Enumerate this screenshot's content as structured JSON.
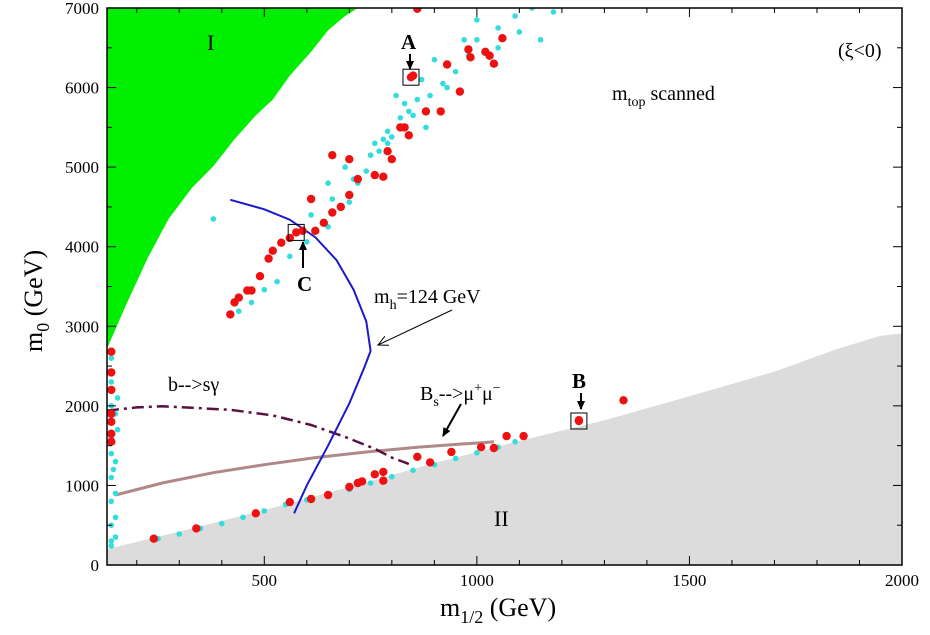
{
  "chart_data": {
    "type": "scatter",
    "title": "",
    "xlabel": {
      "main": "m",
      "sub": "1/2",
      "unit": " (GeV)"
    },
    "ylabel": {
      "main": "m",
      "sub": "0",
      "unit": " (GeV)"
    },
    "xlim": [
      130,
      2000
    ],
    "ylim": [
      0,
      7000
    ],
    "x_ticks": [
      500,
      1000,
      1500,
      2000
    ],
    "y_ticks": [
      0,
      1000,
      2000,
      3000,
      4000,
      5000,
      6000,
      7000
    ],
    "grid": false,
    "annotations": {
      "xi": "(ξ<0)",
      "mtop": {
        "main": "m",
        "sub": "top",
        "rest": " scanned"
      },
      "region_I": "I",
      "region_II": "II",
      "mh": {
        "main": "m",
        "sub": "h",
        "rest": "=124 GeV"
      },
      "bsg": "b-->sγ",
      "bsmumu": {
        "main": "B",
        "sub": "s",
        "rest": "-->μ",
        "sup1": "+",
        "mid": "μ",
        "sup2": "−"
      },
      "point_A": "A",
      "point_B": "B",
      "point_C": "C"
    },
    "colors": {
      "region_I": "#00ee00",
      "region_II": "#dcdcdc",
      "cyan": "#33dddd",
      "red": "#ee1111",
      "mh_curve": "#1a1acc",
      "bsg_curve": "#5a1040",
      "bsmumu_curve": "#b08888"
    },
    "regions": {
      "I": [
        [
          130,
          2720
        ],
        [
          175,
          3270
        ],
        [
          225,
          3850
        ],
        [
          275,
          4350
        ],
        [
          330,
          4740
        ],
        [
          380,
          5010
        ],
        [
          430,
          5350
        ],
        [
          480,
          5650
        ],
        [
          520,
          5850
        ],
        [
          560,
          6150
        ],
        [
          610,
          6450
        ],
        [
          650,
          6720
        ],
        [
          690,
          6900
        ],
        [
          720,
          7000
        ],
        [
          130,
          7000
        ]
      ],
      "II": [
        [
          130,
          0
        ],
        [
          130,
          200
        ],
        [
          300,
          420
        ],
        [
          500,
          690
        ],
        [
          700,
          980
        ],
        [
          900,
          1280
        ],
        [
          1100,
          1560
        ],
        [
          1300,
          1820
        ],
        [
          1500,
          2120
        ],
        [
          1700,
          2430
        ],
        [
          1850,
          2720
        ],
        [
          1950,
          2880
        ],
        [
          2000,
          2910
        ],
        [
          2000,
          0
        ]
      ]
    },
    "curves": {
      "mh": [
        [
          420,
          4590
        ],
        [
          500,
          4470
        ],
        [
          560,
          4340
        ],
        [
          620,
          4120
        ],
        [
          670,
          3830
        ],
        [
          710,
          3460
        ],
        [
          740,
          3060
        ],
        [
          750,
          2690
        ],
        [
          735,
          2480
        ],
        [
          700,
          2030
        ],
        [
          650,
          1500
        ],
        [
          600,
          1000
        ],
        [
          570,
          650
        ]
      ],
      "bsg": [
        [
          130,
          1940
        ],
        [
          200,
          1980
        ],
        [
          260,
          1995
        ],
        [
          330,
          1975
        ],
        [
          420,
          1950
        ],
        [
          520,
          1880
        ],
        [
          610,
          1760
        ],
        [
          690,
          1610
        ],
        [
          760,
          1460
        ],
        [
          800,
          1350
        ],
        [
          840,
          1270
        ]
      ],
      "bsmumu": [
        [
          150,
          880
        ],
        [
          260,
          1030
        ],
        [
          380,
          1160
        ],
        [
          500,
          1260
        ],
        [
          620,
          1350
        ],
        [
          740,
          1420
        ],
        [
          860,
          1480
        ],
        [
          960,
          1520
        ],
        [
          1020,
          1540
        ],
        [
          1040,
          1550
        ]
      ]
    },
    "series": [
      {
        "color": "cyan",
        "points": [
          [
            380,
            4350
          ],
          [
            440,
            3190
          ],
          [
            470,
            3300
          ],
          [
            500,
            3460
          ],
          [
            530,
            3560
          ],
          [
            560,
            3880
          ],
          [
            600,
            4060
          ],
          [
            620,
            4200
          ],
          [
            650,
            4250
          ],
          [
            680,
            4480
          ],
          [
            700,
            4560
          ],
          [
            710,
            4850
          ],
          [
            740,
            4950
          ],
          [
            770,
            5200
          ],
          [
            800,
            5380
          ],
          [
            820,
            5620
          ],
          [
            840,
            5700
          ],
          [
            860,
            5850
          ],
          [
            890,
            5900
          ],
          [
            920,
            6050
          ],
          [
            950,
            6200
          ],
          [
            980,
            6400
          ],
          [
            1000,
            6600
          ],
          [
            1050,
            6750
          ],
          [
            1090,
            6900
          ],
          [
            1130,
            7000
          ],
          [
            1180,
            6950
          ],
          [
            650,
            4800
          ],
          [
            690,
            5000
          ],
          [
            750,
            5150
          ],
          [
            790,
            5450
          ],
          [
            830,
            5800
          ],
          [
            870,
            6100
          ],
          [
            900,
            6350
          ],
          [
            1000,
            6850
          ],
          [
            1100,
            6700
          ],
          [
            610,
            4400
          ],
          [
            660,
            4600
          ],
          [
            720,
            4800
          ],
          [
            780,
            5350
          ],
          [
            850,
            5650
          ],
          [
            930,
            6000
          ],
          [
            1050,
            6500
          ],
          [
            1150,
            6600
          ],
          [
            790,
            5300
          ],
          [
            880,
            5500
          ],
          [
            760,
            5300
          ],
          [
            810,
            5900
          ],
          [
            970,
            6600
          ],
          [
            250,
            330
          ],
          [
            300,
            390
          ],
          [
            350,
            460
          ],
          [
            400,
            520
          ],
          [
            450,
            600
          ],
          [
            500,
            680
          ],
          [
            550,
            760
          ],
          [
            600,
            820
          ],
          [
            650,
            880
          ],
          [
            700,
            950
          ],
          [
            750,
            1030
          ],
          [
            800,
            1110
          ],
          [
            850,
            1190
          ],
          [
            900,
            1260
          ],
          [
            950,
            1340
          ],
          [
            1000,
            1410
          ],
          [
            1050,
            1480
          ],
          [
            1090,
            1550
          ],
          [
            140,
            240
          ],
          [
            140,
            500
          ],
          [
            140,
            800
          ],
          [
            140,
            1100
          ],
          [
            140,
            1400
          ],
          [
            140,
            1600
          ],
          [
            140,
            1800
          ],
          [
            140,
            2000
          ],
          [
            140,
            2200
          ],
          [
            140,
            2400
          ],
          [
            140,
            2600
          ],
          [
            155,
            2100
          ],
          [
            155,
            1700
          ],
          [
            150,
            1900
          ],
          [
            150,
            1300
          ],
          [
            150,
            900
          ],
          [
            150,
            600
          ],
          [
            150,
            350
          ],
          [
            140,
            300
          ],
          [
            145,
            1200
          ],
          [
            140,
            2300
          ]
        ]
      },
      {
        "color": "red",
        "points": [
          [
            850,
            6150
          ],
          [
            860,
            6990
          ],
          [
            930,
            6290
          ],
          [
            985,
            6380
          ],
          [
            1020,
            6450
          ],
          [
            1030,
            6400
          ],
          [
            1060,
            6620
          ],
          [
            1040,
            6300
          ],
          [
            980,
            6480
          ],
          [
            960,
            5950
          ],
          [
            915,
            5700
          ],
          [
            880,
            5700
          ],
          [
            840,
            5400
          ],
          [
            830,
            5500
          ],
          [
            820,
            5500
          ],
          [
            790,
            5200
          ],
          [
            800,
            5100
          ],
          [
            780,
            4880
          ],
          [
            760,
            4900
          ],
          [
            720,
            4850
          ],
          [
            700,
            4650
          ],
          [
            680,
            4500
          ],
          [
            660,
            4430
          ],
          [
            640,
            4300
          ],
          [
            620,
            4200
          ],
          [
            590,
            4200
          ],
          [
            560,
            4110
          ],
          [
            540,
            4050
          ],
          [
            520,
            3950
          ],
          [
            510,
            3850
          ],
          [
            490,
            3630
          ],
          [
            470,
            3450
          ],
          [
            460,
            3450
          ],
          [
            440,
            3360
          ],
          [
            430,
            3300
          ],
          [
            420,
            3150
          ],
          [
            660,
            5150
          ],
          [
            700,
            5100
          ],
          [
            610,
            4600
          ],
          [
            140,
            2680
          ],
          [
            140,
            2420
          ],
          [
            140,
            2200
          ],
          [
            140,
            1900
          ],
          [
            140,
            1800
          ],
          [
            140,
            1550
          ],
          [
            140,
            1650
          ],
          [
            1240,
            1820
          ],
          [
            1345,
            2070
          ],
          [
            1070,
            1620
          ],
          [
            1110,
            1620
          ],
          [
            1040,
            1470
          ],
          [
            1010,
            1480
          ],
          [
            940,
            1420
          ],
          [
            890,
            1290
          ],
          [
            860,
            1360
          ],
          [
            780,
            1170
          ],
          [
            760,
            1140
          ],
          [
            730,
            1050
          ],
          [
            720,
            1030
          ],
          [
            700,
            980
          ],
          [
            650,
            880
          ],
          [
            610,
            830
          ],
          [
            560,
            790
          ],
          [
            480,
            650
          ],
          [
            340,
            460
          ],
          [
            240,
            330
          ],
          [
            780,
            1060
          ]
        ]
      }
    ],
    "markers": [
      [
        845,
        6130
      ],
      [
        575,
        4180
      ],
      [
        1240,
        1810
      ]
    ]
  }
}
